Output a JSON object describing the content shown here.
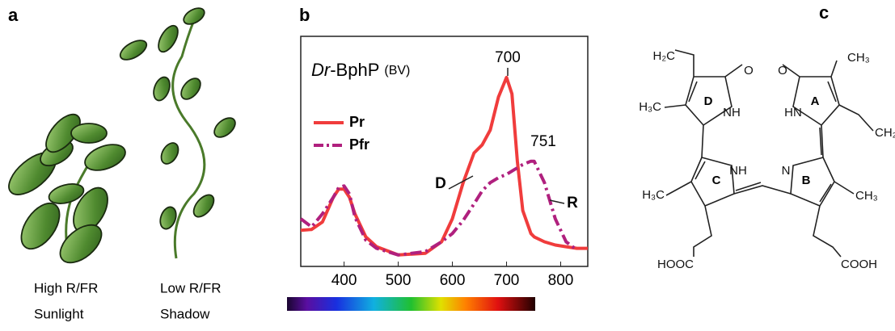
{
  "panel_labels": [
    "a",
    "b",
    "c"
  ],
  "plants": [
    {
      "lines": [
        "High R/FR",
        "Sunlight"
      ]
    },
    {
      "lines": [
        "Low R/FR",
        "Shadow"
      ]
    }
  ],
  "chart_data": {
    "type": "line",
    "title": [
      "Dr",
      "-BphP"
    ],
    "subtitle": "(BV)",
    "x": [
      320,
      340,
      360,
      380,
      390,
      400,
      410,
      420,
      440,
      460,
      500,
      550,
      580,
      600,
      620,
      640,
      655,
      670,
      685,
      700,
      710,
      720,
      730,
      745,
      751,
      770,
      790,
      810,
      830,
      850
    ],
    "series": [
      {
        "name": "Pr",
        "color": "#f03c3c",
        "values": [
          0.02,
          0.025,
          0.07,
          0.22,
          0.27,
          0.27,
          0.22,
          0.12,
          -0.02,
          -0.08,
          -0.13,
          -0.12,
          -0.05,
          0.09,
          0.31,
          0.49,
          0.54,
          0.63,
          0.83,
          0.95,
          0.85,
          0.44,
          0.14,
          0,
          -0.02,
          -0.05,
          -0.07,
          -0.08,
          -0.09,
          -0.09
        ]
      },
      {
        "name": "Pfr",
        "color": "#b0207e",
        "values": [
          0.09,
          0.04,
          0.12,
          0.22,
          0.28,
          0.29,
          0.24,
          0.1,
          -0.04,
          -0.09,
          -0.13,
          -0.11,
          -0.05,
          0,
          0.08,
          0.18,
          0.26,
          0.31,
          0.34,
          0.36,
          0.38,
          0.4,
          0.42,
          0.44,
          0.44,
          0.31,
          0.09,
          -0.05,
          -0.1,
          null
        ]
      }
    ],
    "annotations": [
      "700",
      "751",
      "D",
      "R"
    ],
    "xlim": [
      320,
      850
    ],
    "ylim": [
      -0.2,
      1.2
    ],
    "xticks": [
      400,
      500,
      600,
      700,
      800
    ]
  },
  "molecule": {
    "atoms": [
      "H₂C",
      "O",
      "O",
      "CH₃",
      "H₃C",
      "NH",
      "HN",
      "CH₂",
      "NH",
      "N",
      "H₃C",
      "CH₃",
      "HOOC",
      "COOH"
    ],
    "rings": [
      "D",
      "A",
      "C",
      "B"
    ]
  }
}
